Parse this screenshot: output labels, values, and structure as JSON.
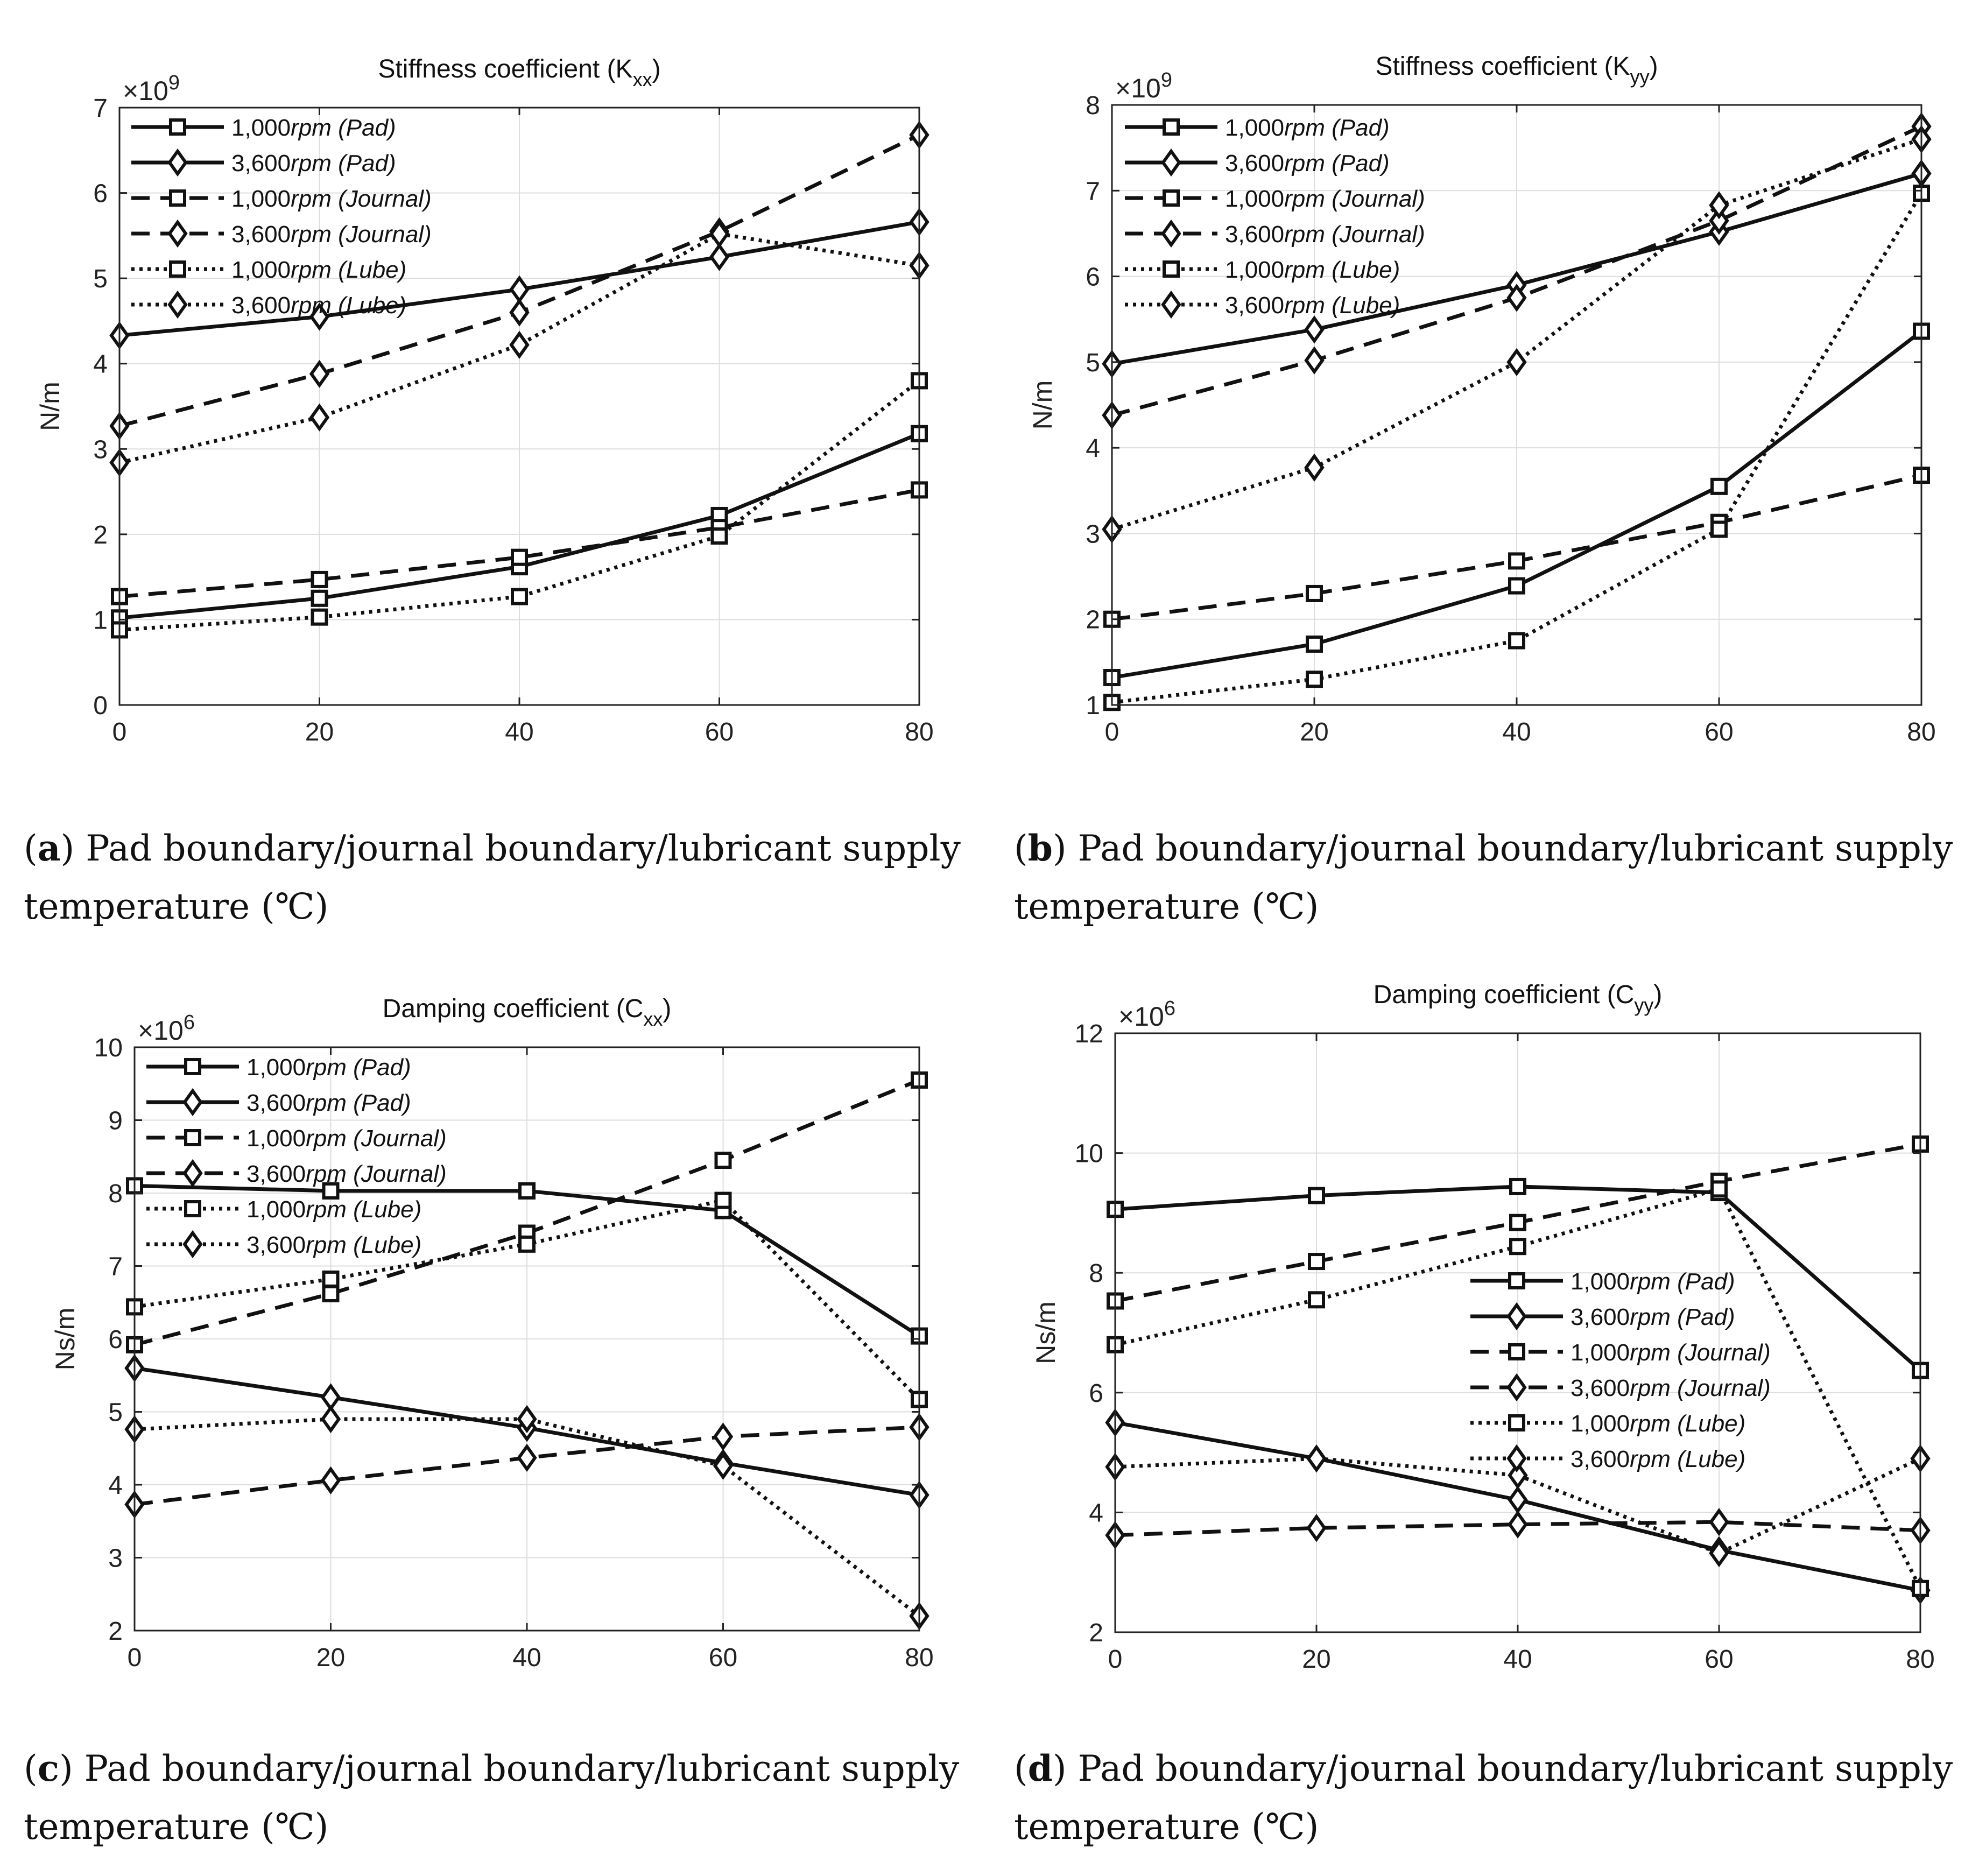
{
  "figure": {
    "captions": [
      {
        "letter": "a",
        "text": "Pad boundary/journal boundary/lubricant supply",
        "text2": "temperature (℃)"
      },
      {
        "letter": "b",
        "text": "Pad boundary/journal boundary/lubricant supply",
        "text2": "temperature (℃)"
      },
      {
        "letter": "c",
        "text": "Pad boundary/journal boundary/lubricant supply",
        "text2": "temperature (℃)"
      },
      {
        "letter": "d",
        "text": "Pad boundary/journal boundary/lubricant supply",
        "text2": "temperature (℃)"
      }
    ]
  },
  "chart_data": [
    {
      "type": "line",
      "title": "Stiffness coefficient (K",
      "title_sub": "xx",
      "ylabel": "N/m",
      "exponent_base": "×10",
      "exponent_power": "9",
      "xlim": [
        0,
        80
      ],
      "ylim": [
        0,
        7
      ],
      "xticks": [
        0,
        20,
        40,
        60,
        80
      ],
      "yticks": [
        0,
        1,
        2,
        3,
        4,
        5,
        6,
        7
      ],
      "grid": true,
      "legend_position": "top-left",
      "x": [
        0,
        20,
        40,
        60,
        80
      ],
      "series": [
        {
          "name": "1,000rpm (Pad)",
          "rpm": "1,000",
          "unit": "rpm (Pad)",
          "style": "solid",
          "marker": "square",
          "values": [
            1.02,
            1.25,
            1.62,
            2.22,
            3.18
          ]
        },
        {
          "name": "3,600rpm (Pad)",
          "rpm": "3,600",
          "unit": "rpm (Pad)",
          "style": "solid",
          "marker": "diamond",
          "values": [
            4.33,
            4.55,
            4.87,
            5.25,
            5.66
          ]
        },
        {
          "name": "1,000rpm (Journal)",
          "rpm": "1,000",
          "unit": "rpm (Journal)",
          "style": "dashed",
          "marker": "square",
          "values": [
            1.27,
            1.47,
            1.73,
            2.08,
            2.52
          ]
        },
        {
          "name": "3,600rpm (Journal)",
          "rpm": "3,600",
          "unit": "rpm (Journal)",
          "style": "dashed",
          "marker": "diamond",
          "values": [
            3.27,
            3.88,
            4.6,
            5.55,
            6.68
          ]
        },
        {
          "name": "1,000rpm (Lube)",
          "rpm": "1,000",
          "unit": "rpm (Lube)",
          "style": "dotted",
          "marker": "square",
          "values": [
            0.88,
            1.03,
            1.27,
            1.98,
            3.8
          ]
        },
        {
          "name": "3,600rpm (Lube)",
          "rpm": "3,600",
          "unit": "rpm (Lube)",
          "style": "dotted",
          "marker": "diamond",
          "values": [
            2.84,
            3.37,
            4.22,
            5.52,
            5.15
          ]
        }
      ]
    },
    {
      "type": "line",
      "title": "Stiffness coefficient (K",
      "title_sub": "yy",
      "ylabel": "N/m",
      "exponent_base": "×10",
      "exponent_power": "9",
      "xlim": [
        0,
        80
      ],
      "ylim": [
        1,
        8
      ],
      "xticks": [
        0,
        20,
        40,
        60,
        80
      ],
      "yticks": [
        1,
        2,
        3,
        4,
        5,
        6,
        7,
        8
      ],
      "grid": true,
      "legend_position": "top-left",
      "x": [
        0,
        20,
        40,
        60,
        80
      ],
      "series": [
        {
          "name": "1,000rpm (Pad)",
          "rpm": "1,000",
          "unit": "rpm (Pad)",
          "style": "solid",
          "marker": "square",
          "values": [
            1.32,
            1.71,
            2.39,
            3.55,
            5.36
          ]
        },
        {
          "name": "3,600rpm (Pad)",
          "rpm": "3,600",
          "unit": "rpm (Pad)",
          "style": "solid",
          "marker": "diamond",
          "values": [
            4.98,
            5.38,
            5.9,
            6.52,
            7.2
          ]
        },
        {
          "name": "1,000rpm (Journal)",
          "rpm": "1,000",
          "unit": "rpm (Journal)",
          "style": "dashed",
          "marker": "square",
          "values": [
            2.0,
            2.3,
            2.68,
            3.13,
            3.68
          ]
        },
        {
          "name": "3,600rpm (Journal)",
          "rpm": "3,600",
          "unit": "rpm (Journal)",
          "style": "dashed",
          "marker": "diamond",
          "values": [
            4.38,
            5.02,
            5.75,
            6.65,
            7.75
          ]
        },
        {
          "name": "1,000rpm (Lube)",
          "rpm": "1,000",
          "unit": "rpm (Lube)",
          "style": "dotted",
          "marker": "square",
          "values": [
            1.03,
            1.3,
            1.75,
            3.05,
            6.97
          ]
        },
        {
          "name": "3,600rpm (Lube)",
          "rpm": "3,600",
          "unit": "rpm (Lube)",
          "style": "dotted",
          "marker": "diamond",
          "values": [
            3.05,
            3.77,
            5.0,
            6.83,
            7.6
          ]
        }
      ]
    },
    {
      "type": "line",
      "title": "Damping coefficient (C",
      "title_sub": "xx",
      "ylabel": "Ns/m",
      "exponent_base": "×10",
      "exponent_power": "6",
      "xlim": [
        0,
        80
      ],
      "ylim": [
        2,
        10
      ],
      "xticks": [
        0,
        20,
        40,
        60,
        80
      ],
      "yticks": [
        2,
        3,
        4,
        5,
        6,
        7,
        8,
        9,
        10
      ],
      "grid": true,
      "legend_position": "top-left",
      "x": [
        0,
        20,
        40,
        60,
        80
      ],
      "series": [
        {
          "name": "1,000rpm (Pad)",
          "rpm": "1,000",
          "unit": "rpm (Pad)",
          "style": "solid",
          "marker": "square",
          "values": [
            8.1,
            8.03,
            8.03,
            7.76,
            6.04
          ]
        },
        {
          "name": "3,600rpm (Pad)",
          "rpm": "3,600",
          "unit": "rpm (Pad)",
          "style": "solid",
          "marker": "diamond",
          "values": [
            5.6,
            5.2,
            4.78,
            4.3,
            3.86
          ]
        },
        {
          "name": "1,000rpm (Journal)",
          "rpm": "1,000",
          "unit": "rpm (Journal)",
          "style": "dashed",
          "marker": "square",
          "values": [
            5.92,
            6.62,
            7.45,
            8.45,
            9.55
          ]
        },
        {
          "name": "3,600rpm (Journal)",
          "rpm": "3,600",
          "unit": "rpm (Journal)",
          "style": "dashed",
          "marker": "diamond",
          "values": [
            3.73,
            4.06,
            4.37,
            4.66,
            4.79
          ]
        },
        {
          "name": "1,000rpm (Lube)",
          "rpm": "1,000",
          "unit": "rpm (Lube)",
          "style": "dotted",
          "marker": "square",
          "values": [
            6.44,
            6.82,
            7.3,
            7.9,
            5.17
          ]
        },
        {
          "name": "3,600rpm (Lube)",
          "rpm": "3,600",
          "unit": "rpm (Lube)",
          "style": "dotted",
          "marker": "diamond",
          "values": [
            4.76,
            4.9,
            4.9,
            4.26,
            2.2
          ]
        }
      ]
    },
    {
      "type": "line",
      "title": "Damping coefficient (C",
      "title_sub": "yy",
      "ylabel": "Ns/m",
      "exponent_base": "×10",
      "exponent_power": "6",
      "xlim": [
        0,
        80
      ],
      "ylim": [
        2,
        12
      ],
      "xticks": [
        0,
        20,
        40,
        60,
        80
      ],
      "yticks": [
        2,
        4,
        6,
        8,
        10,
        12
      ],
      "grid": true,
      "legend_position": "center-right",
      "x": [
        0,
        20,
        40,
        60,
        80
      ],
      "series": [
        {
          "name": "1,000rpm (Pad)",
          "rpm": "1,000",
          "unit": "rpm (Pad)",
          "style": "solid",
          "marker": "square",
          "values": [
            9.06,
            9.29,
            9.44,
            9.34,
            6.37
          ]
        },
        {
          "name": "3,600rpm (Pad)",
          "rpm": "3,600",
          "unit": "rpm (Pad)",
          "style": "solid",
          "marker": "diamond",
          "values": [
            5.5,
            4.9,
            4.21,
            3.37,
            2.7
          ]
        },
        {
          "name": "1,000rpm (Journal)",
          "rpm": "1,000",
          "unit": "rpm (Journal)",
          "style": "dashed",
          "marker": "square",
          "values": [
            7.53,
            8.19,
            8.84,
            9.53,
            10.15
          ]
        },
        {
          "name": "3,600rpm (Journal)",
          "rpm": "3,600",
          "unit": "rpm (Journal)",
          "style": "dashed",
          "marker": "diamond",
          "values": [
            3.62,
            3.74,
            3.8,
            3.84,
            3.7
          ]
        },
        {
          "name": "1,000rpm (Lube)",
          "rpm": "1,000",
          "unit": "rpm (Lube)",
          "style": "dotted",
          "marker": "square",
          "values": [
            6.8,
            7.55,
            8.44,
            9.4,
            2.73
          ]
        },
        {
          "name": "3,600rpm (Lube)",
          "rpm": "3,600",
          "unit": "rpm (Lube)",
          "style": "dotted",
          "marker": "diamond",
          "values": [
            4.76,
            4.9,
            4.62,
            3.32,
            4.9
          ]
        }
      ]
    }
  ]
}
